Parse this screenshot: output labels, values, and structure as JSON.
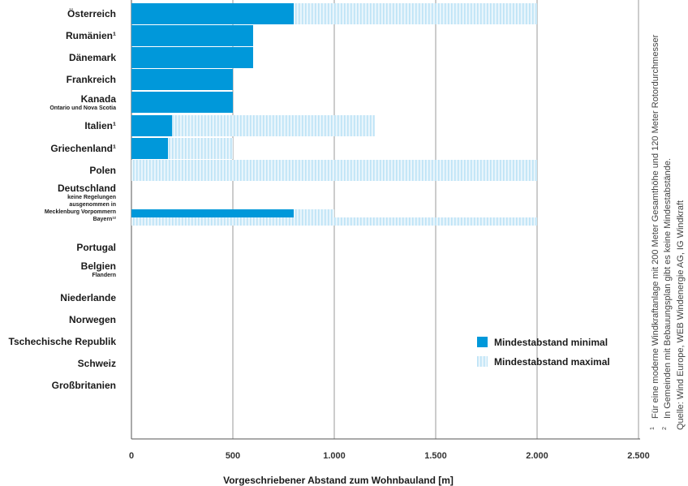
{
  "chart_data": {
    "type": "bar",
    "orientation": "horizontal",
    "xlabel": "Vorgeschriebener Abstand zum Wohnbauland [m]",
    "xlim": [
      0,
      2500
    ],
    "xticks": [
      0,
      500,
      1000,
      1500,
      2000,
      2500
    ],
    "xtick_labels": [
      "0",
      "500",
      "1.000",
      "1.500",
      "2.000",
      "2.500"
    ],
    "grid": true,
    "legend_position": "bottom-right",
    "colors": {
      "minimal": "#0098DA",
      "maximal_stripe": "#BDE3F6",
      "maximal_bg": "#E8F5FC",
      "grid": "#9a9a9a"
    },
    "series": [
      {
        "key": "minimal",
        "name": "Mindestabstand minimal"
      },
      {
        "key": "maximal",
        "name": "Mindestabstand maximal"
      }
    ],
    "categories": [
      {
        "label": "Österreich",
        "sub": [],
        "min": 800,
        "max": 2000
      },
      {
        "label": "Rumänien¹",
        "sub": [],
        "min": 600,
        "max": 600
      },
      {
        "label": "Dänemark",
        "sub": [],
        "min": 600,
        "max": 600
      },
      {
        "label": "Frankreich",
        "sub": [],
        "min": 500,
        "max": 500
      },
      {
        "label": "Kanada",
        "sub": [
          "Ontario und Nova Scotia"
        ],
        "min": 500,
        "max": 500
      },
      {
        "label": "Italien¹",
        "sub": [],
        "min": 200,
        "max": 1200
      },
      {
        "label": "Griechenland¹",
        "sub": [],
        "min": 180,
        "max": 500
      },
      {
        "label": "Polen",
        "sub": [],
        "min": 0,
        "max": 2000
      },
      {
        "label": "Deutschland",
        "sub": [
          "keine Regelungen",
          "ausgenommen in",
          "Mecklenburg Vorpommern",
          "Bayern¹²"
        ],
        "bars": [
          {
            "min": 800,
            "max": 1000
          },
          {
            "min": 0,
            "max": 2000
          }
        ]
      },
      {
        "label": "Portugal",
        "sub": [],
        "min": 0,
        "max": 0
      },
      {
        "label": "Belgien",
        "sub": [
          "Flandern"
        ],
        "min": 0,
        "max": 0
      },
      {
        "label": "Niederlande",
        "sub": [],
        "min": 0,
        "max": 0
      },
      {
        "label": "Norwegen",
        "sub": [],
        "min": 0,
        "max": 0
      },
      {
        "label": "Tschechische Republik",
        "sub": [],
        "min": 0,
        "max": 0
      },
      {
        "label": "Schweiz",
        "sub": [],
        "min": 0,
        "max": 0
      },
      {
        "label": "Großbritanien",
        "sub": [],
        "min": 0,
        "max": 0
      }
    ]
  },
  "notes": [
    {
      "num": "1",
      "text": "Für eine moderne Windkraftanlage  mit 200 Meter Gesamthöhe und 120 Meter Rotordurchmesser"
    },
    {
      "num": "2",
      "text": "In Gemeinden mit Bebauungsplan gibt es keine Mindestabstände."
    },
    {
      "num": "",
      "text": "Quelle: Wind Europe, WEB Windenergie AG, IG Windkraft"
    }
  ]
}
